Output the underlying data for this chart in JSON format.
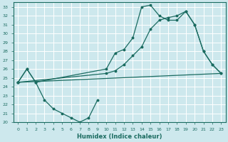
{
  "xlabel": "Humidex (Indice chaleur)",
  "bg_color": "#cde8ed",
  "grid_color": "#ffffff",
  "line_color": "#1a6b60",
  "xlim": [
    -0.5,
    23.5
  ],
  "ylim": [
    20,
    33.5
  ],
  "xticks": [
    0,
    1,
    2,
    3,
    4,
    5,
    6,
    7,
    8,
    9,
    10,
    11,
    12,
    13,
    14,
    15,
    16,
    17,
    18,
    19,
    20,
    21,
    22,
    23
  ],
  "yticks": [
    20,
    21,
    22,
    23,
    24,
    25,
    26,
    27,
    28,
    29,
    30,
    31,
    32,
    33
  ],
  "line1": [
    [
      0,
      24.5
    ],
    [
      1,
      26.0
    ],
    [
      2,
      24.5
    ],
    [
      3,
      22.5
    ],
    [
      4,
      21.5
    ],
    [
      5,
      21.0
    ],
    [
      6,
      20.5
    ],
    [
      7,
      20.0
    ],
    [
      8,
      20.5
    ],
    [
      9,
      22.5
    ]
  ],
  "line2": [
    [
      0,
      24.5
    ],
    [
      1,
      26.0
    ],
    [
      2,
      24.5
    ],
    [
      10,
      26.0
    ],
    [
      11,
      27.8
    ],
    [
      12,
      28.2
    ],
    [
      13,
      29.5
    ],
    [
      14,
      33.0
    ],
    [
      15,
      33.2
    ],
    [
      16,
      32.0
    ],
    [
      17,
      31.5
    ],
    [
      18,
      31.5
    ],
    [
      19,
      32.5
    ],
    [
      20,
      31.0
    ],
    [
      21,
      28.0
    ],
    [
      22,
      26.5
    ],
    [
      23,
      25.5
    ]
  ],
  "line3": [
    [
      0,
      24.5
    ],
    [
      10,
      25.5
    ],
    [
      11,
      25.8
    ],
    [
      12,
      26.5
    ],
    [
      13,
      27.5
    ],
    [
      14,
      28.5
    ],
    [
      15,
      30.5
    ],
    [
      16,
      31.5
    ],
    [
      17,
      31.8
    ],
    [
      18,
      32.0
    ],
    [
      19,
      32.5
    ],
    [
      20,
      31.0
    ],
    [
      21,
      28.0
    ],
    [
      22,
      26.5
    ],
    [
      23,
      25.5
    ]
  ],
  "line4": [
    [
      0,
      24.5
    ],
    [
      23,
      25.5
    ]
  ]
}
